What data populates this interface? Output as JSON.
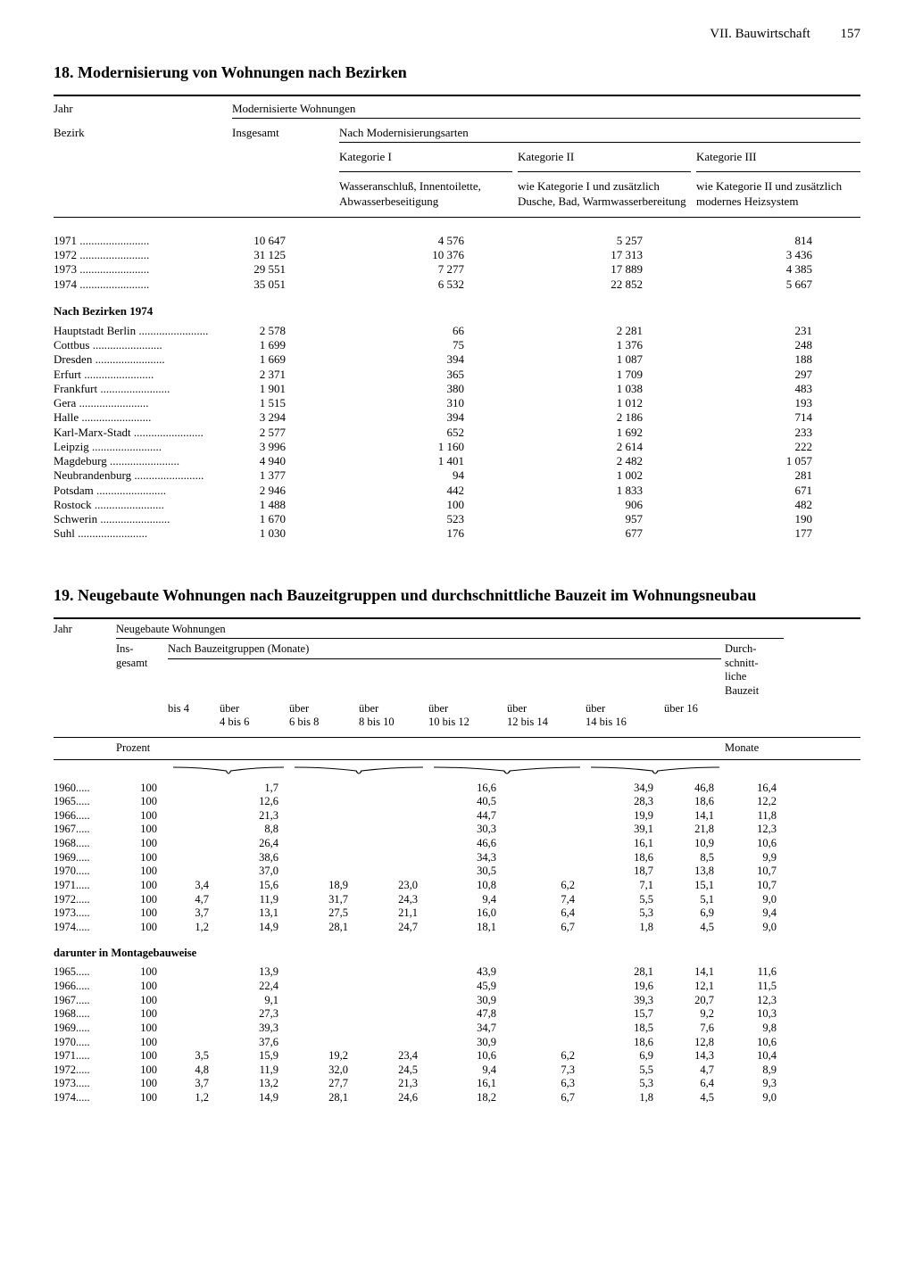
{
  "page": {
    "running_head": "VII. Bauwirtschaft",
    "page_number": "157"
  },
  "table18": {
    "title": "18. Modernisierung von Wohnungen nach Bezirken",
    "row_labels": {
      "jahr": "Jahr",
      "bezirk": "Bezirk"
    },
    "header": {
      "mod_wohn": "Modernisierte Wohnungen",
      "insgesamt": "Insgesamt",
      "nach_arten": "Nach Modernisierungsarten",
      "kat1": "Kategorie I",
      "kat2": "Kategorie II",
      "kat3": "Kategorie III",
      "desc1": "Wasseranschluß, Innentoilette, Abwasserbeseitigung",
      "desc2": "wie Kategorie I und zusätzlich Dusche, Bad, Warmwasserbereitung",
      "desc3": "wie Kategorie II und zusätzlich modernes Heizsystem"
    },
    "years": [
      {
        "label": "1971",
        "ins": "10 647",
        "k1": "4 576",
        "k2": "5 257",
        "k3": "814"
      },
      {
        "label": "1972",
        "ins": "31 125",
        "k1": "10 376",
        "k2": "17 313",
        "k3": "3 436"
      },
      {
        "label": "1973",
        "ins": "29 551",
        "k1": "7 277",
        "k2": "17 889",
        "k3": "4 385"
      },
      {
        "label": "1974",
        "ins": "35 051",
        "k1": "6 532",
        "k2": "22 852",
        "k3": "5 667"
      }
    ],
    "bezirke_heading": "Nach Bezirken 1974",
    "bezirke": [
      {
        "label": "Hauptstadt Berlin",
        "ins": "2 578",
        "k1": "66",
        "k2": "2 281",
        "k3": "231"
      },
      {
        "label": "Cottbus",
        "ins": "1 699",
        "k1": "75",
        "k2": "1 376",
        "k3": "248"
      },
      {
        "label": "Dresden",
        "ins": "1 669",
        "k1": "394",
        "k2": "1 087",
        "k3": "188"
      },
      {
        "label": "Erfurt",
        "ins": "2 371",
        "k1": "365",
        "k2": "1 709",
        "k3": "297"
      },
      {
        "label": "Frankfurt",
        "ins": "1 901",
        "k1": "380",
        "k2": "1 038",
        "k3": "483"
      },
      {
        "label": "Gera",
        "ins": "1 515",
        "k1": "310",
        "k2": "1 012",
        "k3": "193"
      },
      {
        "label": "Halle",
        "ins": "3 294",
        "k1": "394",
        "k2": "2 186",
        "k3": "714"
      },
      {
        "label": "Karl-Marx-Stadt",
        "ins": "2 577",
        "k1": "652",
        "k2": "1 692",
        "k3": "233"
      },
      {
        "label": "Leipzig",
        "ins": "3 996",
        "k1": "1 160",
        "k2": "2 614",
        "k3": "222"
      },
      {
        "label": "Magdeburg",
        "ins": "4 940",
        "k1": "1 401",
        "k2": "2 482",
        "k3": "1 057"
      },
      {
        "label": "Neubrandenburg",
        "ins": "1 377",
        "k1": "94",
        "k2": "1 002",
        "k3": "281"
      },
      {
        "label": "Potsdam",
        "ins": "2 946",
        "k1": "442",
        "k2": "1 833",
        "k3": "671"
      },
      {
        "label": "Rostock",
        "ins": "1 488",
        "k1": "100",
        "k2": "906",
        "k3": "482"
      },
      {
        "label": "Schwerin",
        "ins": "1 670",
        "k1": "523",
        "k2": "957",
        "k3": "190"
      },
      {
        "label": "Suhl",
        "ins": "1 030",
        "k1": "176",
        "k2": "677",
        "k3": "177"
      }
    ],
    "dot_fill": " ........................"
  },
  "table19": {
    "title": "19. Neugebaute Wohnungen nach Bauzeitgruppen und durchschnittliche Bauzeit im Wohnungsneubau",
    "header": {
      "jahr": "Jahr",
      "neugebaut": "Neugebaute Wohnungen",
      "insgesamt": "Ins-\ngesamt",
      "nach_gruppen": "Nach Bauzeitgruppen (Monate)",
      "durchschnitt": "Durch-\nschnitt-\nliche\nBauzeit",
      "cols": [
        "bis 4",
        "über\n4 bis 6",
        "über\n6 bis 8",
        "über\n8 bis 10",
        "über\n10 bis 12",
        "über\n12 bis 14",
        "über\n14 bis 16",
        "über 16"
      ],
      "prozent": "Prozent",
      "monate": "Monate"
    },
    "rows_main": [
      {
        "label": "1960",
        "ins": "100",
        "v": [
          "",
          "1,7",
          "",
          "",
          "16,6",
          "",
          "34,9",
          "",
          "46,8"
        ],
        "d": "16,4"
      },
      {
        "label": "1965",
        "ins": "100",
        "v": [
          "",
          "12,6",
          "",
          "",
          "40,5",
          "",
          "28,3",
          "",
          "18,6"
        ],
        "d": "12,2"
      },
      {
        "label": "1966",
        "ins": "100",
        "v": [
          "",
          "21,3",
          "",
          "",
          "44,7",
          "",
          "19,9",
          "",
          "14,1"
        ],
        "d": "11,8"
      },
      {
        "label": "1967",
        "ins": "100",
        "v": [
          "",
          "8,8",
          "",
          "",
          "30,3",
          "",
          "39,1",
          "",
          "21,8"
        ],
        "d": "12,3"
      },
      {
        "label": "1968",
        "ins": "100",
        "v": [
          "",
          "26,4",
          "",
          "",
          "46,6",
          "",
          "16,1",
          "",
          "10,9"
        ],
        "d": "10,6"
      },
      {
        "label": "1969",
        "ins": "100",
        "v": [
          "",
          "38,6",
          "",
          "",
          "34,3",
          "",
          "18,6",
          "",
          "8,5"
        ],
        "d": "9,9"
      },
      {
        "label": "1970",
        "ins": "100",
        "v": [
          "",
          "37,0",
          "",
          "",
          "30,5",
          "",
          "18,7",
          "",
          "13,8"
        ],
        "d": "10,7"
      },
      {
        "label": "1971",
        "ins": "100",
        "v": [
          "3,4",
          "15,6",
          "18,9",
          "23,0",
          "10,8",
          "6,2",
          "7,1",
          "",
          "15,1"
        ],
        "d": "10,7"
      },
      {
        "label": "1972",
        "ins": "100",
        "v": [
          "4,7",
          "11,9",
          "31,7",
          "24,3",
          "9,4",
          "7,4",
          "5,5",
          "",
          "5,1"
        ],
        "d": "9,0"
      },
      {
        "label": "1973",
        "ins": "100",
        "v": [
          "3,7",
          "13,1",
          "27,5",
          "21,1",
          "16,0",
          "6,4",
          "5,3",
          "",
          "6,9"
        ],
        "d": "9,4"
      },
      {
        "label": "1974",
        "ins": "100",
        "v": [
          "1,2",
          "14,9",
          "28,1",
          "24,7",
          "18,1",
          "6,7",
          "1,8",
          "",
          "4,5"
        ],
        "d": "9,0"
      }
    ],
    "sub_heading": "darunter in Montagebauweise",
    "rows_sub": [
      {
        "label": "1965",
        "ins": "100",
        "v": [
          "",
          "13,9",
          "",
          "",
          "43,9",
          "",
          "28,1",
          "",
          "14,1"
        ],
        "d": "11,6"
      },
      {
        "label": "1966",
        "ins": "100",
        "v": [
          "",
          "22,4",
          "",
          "",
          "45,9",
          "",
          "19,6",
          "",
          "12,1"
        ],
        "d": "11,5"
      },
      {
        "label": "1967",
        "ins": "100",
        "v": [
          "",
          "9,1",
          "",
          "",
          "30,9",
          "",
          "39,3",
          "",
          "20,7"
        ],
        "d": "12,3"
      },
      {
        "label": "1968",
        "ins": "100",
        "v": [
          "",
          "27,3",
          "",
          "",
          "47,8",
          "",
          "15,7",
          "",
          "9,2"
        ],
        "d": "10,3"
      },
      {
        "label": "1969",
        "ins": "100",
        "v": [
          "",
          "39,3",
          "",
          "",
          "34,7",
          "",
          "18,5",
          "",
          "7,6"
        ],
        "d": "9,8"
      },
      {
        "label": "1970",
        "ins": "100",
        "v": [
          "",
          "37,6",
          "",
          "",
          "30,9",
          "",
          "18,6",
          "",
          "12,8"
        ],
        "d": "10,6"
      },
      {
        "label": "1971",
        "ins": "100",
        "v": [
          "3,5",
          "15,9",
          "19,2",
          "23,4",
          "10,6",
          "6,2",
          "6,9",
          "",
          "14,3"
        ],
        "d": "10,4"
      },
      {
        "label": "1972",
        "ins": "100",
        "v": [
          "4,8",
          "11,9",
          "32,0",
          "24,5",
          "9,4",
          "7,3",
          "5,5",
          "",
          "4,7"
        ],
        "d": "8,9"
      },
      {
        "label": "1973",
        "ins": "100",
        "v": [
          "3,7",
          "13,2",
          "27,7",
          "21,3",
          "16,1",
          "6,3",
          "5,3",
          "",
          "6,4"
        ],
        "d": "9,3"
      },
      {
        "label": "1974",
        "ins": "100",
        "v": [
          "1,2",
          "14,9",
          "28,1",
          "24,6",
          "18,2",
          "6,7",
          "1,8",
          "",
          "4,5"
        ],
        "d": "9,0"
      }
    ],
    "dot_fill": "....."
  }
}
